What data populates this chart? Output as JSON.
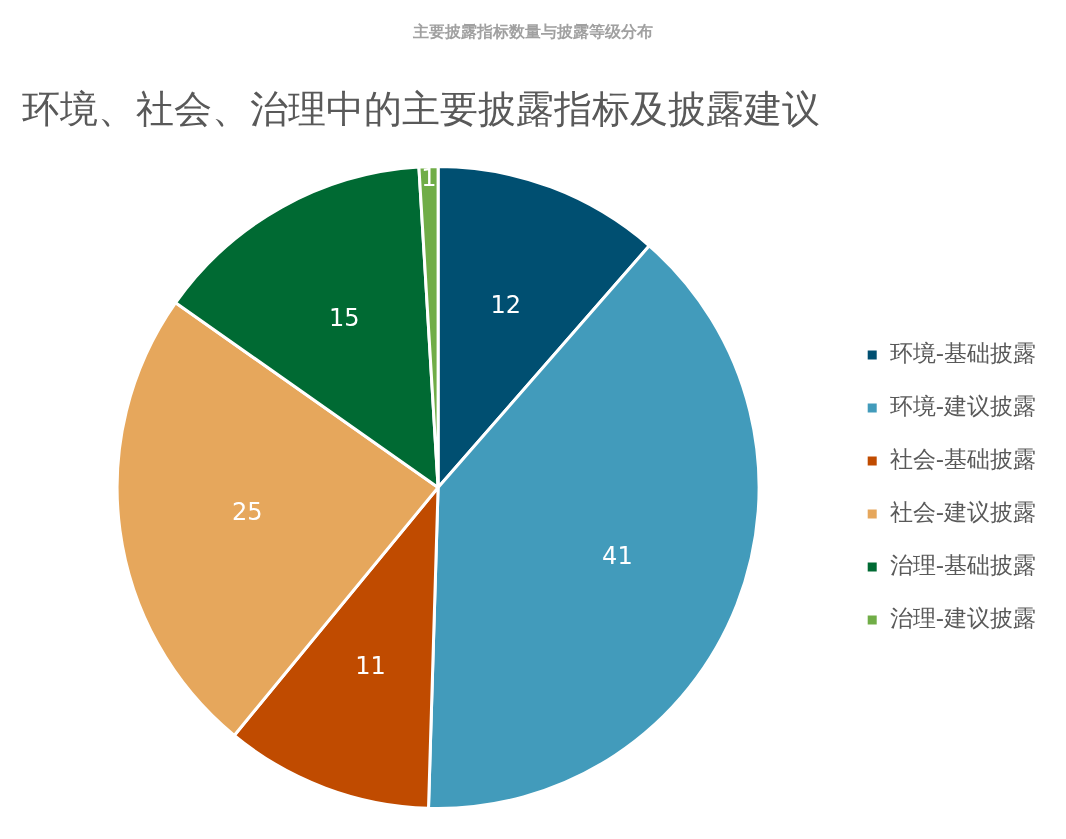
{
  "chart_data": {
    "type": "pie",
    "title": "主要披露指标数量与披露等级分布",
    "subtitle": "环境、社会、治理中的主要披露指标及披露建议",
    "categories": [
      "环境-基础披露",
      "环境-建议披露",
      "社会-基础披露",
      "社会-建议披露",
      "治理-基础披露",
      "治理-建议披露"
    ],
    "values": [
      12,
      41,
      11,
      25,
      15,
      1
    ],
    "colors": [
      "#004f71",
      "#429bbb",
      "#c04b00",
      "#e6a75c",
      "#006a33",
      "#70ad47"
    ],
    "data_labels": true,
    "legend": "right"
  }
}
